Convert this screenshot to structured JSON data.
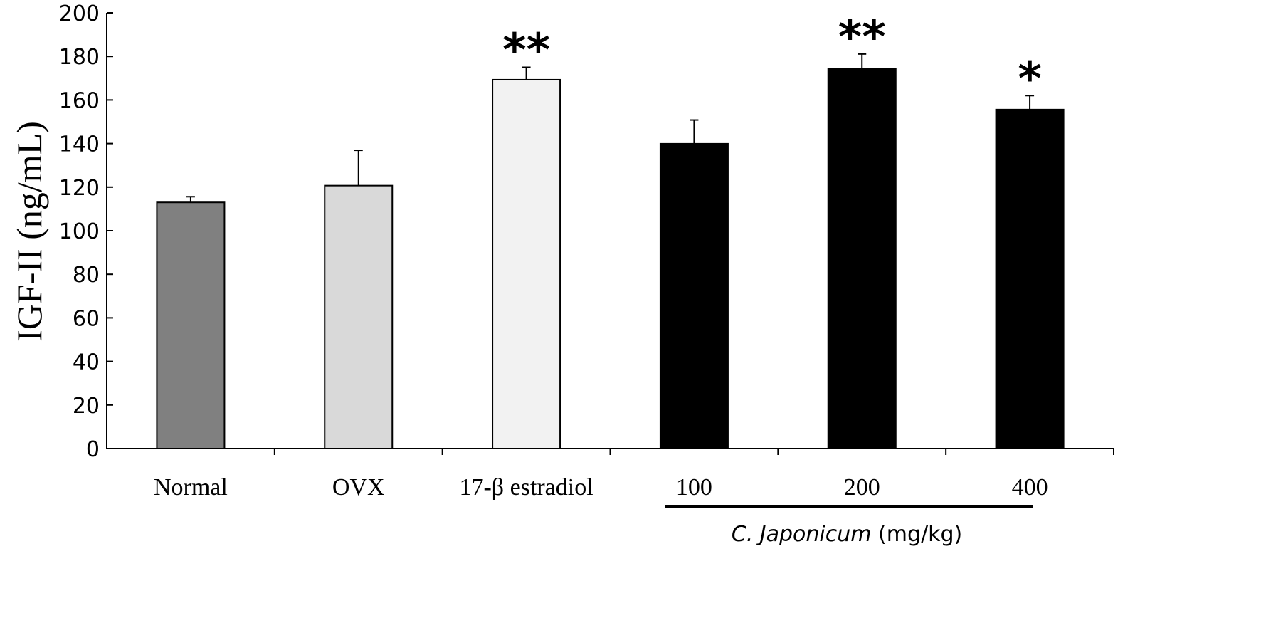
{
  "chart_data": {
    "type": "bar",
    "title": "",
    "ylabel": "IGF-II (ng/mL)",
    "xlabel": "",
    "ylim": [
      0,
      200
    ],
    "yticks": [
      "0",
      "20",
      "40",
      "60",
      "80",
      "100",
      "120",
      "140",
      "160",
      "180",
      "200"
    ],
    "grid": false,
    "categories": [
      "Normal",
      "OVX",
      "17-β estradiol",
      "100",
      "200",
      "400"
    ],
    "values": [
      113,
      120.7,
      169.3,
      139.9,
      174.4,
      155.6
    ],
    "error": [
      2.6,
      16.2,
      5.7,
      10.9,
      6.7,
      6.4
    ],
    "annotations": [
      "",
      "",
      "**",
      "",
      "**",
      "*"
    ],
    "colors": [
      "#808080",
      "#d9d9d9",
      "#f2f2f2",
      "#000000",
      "#000000",
      "#000000"
    ],
    "group_label": {
      "italic": "C. Japonicum",
      "unit": " (mg/kg)"
    }
  }
}
